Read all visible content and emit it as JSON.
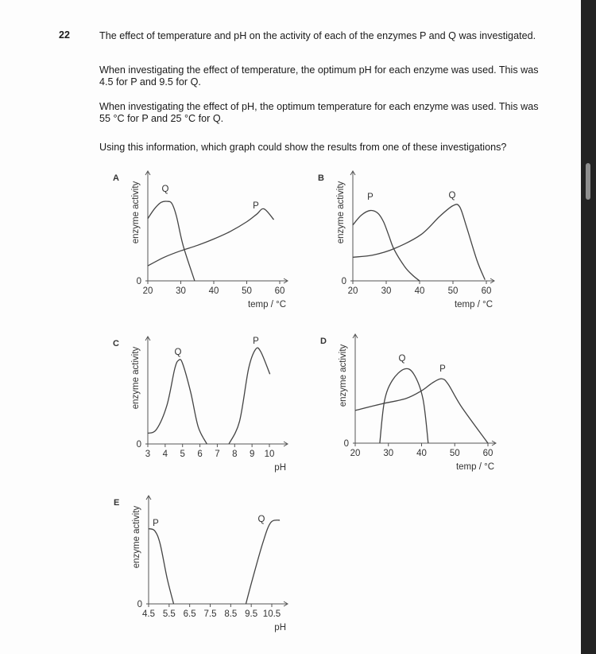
{
  "question": {
    "number": "22",
    "paragraphs": [
      "The effect of temperature and pH on the activity of each of the enzymes P and Q was investigated.",
      "When investigating the effect of temperature, the optimum pH for each enzyme was used. This was 4.5 for P and 9.5 for Q.",
      "When investigating the effect of pH, the optimum temperature for each enzyme was used. This was 55 °C for P and 25 °C for Q.",
      "Using this information, which graph could show the results from one of these investigations?"
    ]
  },
  "chart_data": [
    {
      "type": "line",
      "panel": "A",
      "ylabel": "enzyme activity",
      "xlabel": "temp / °C",
      "xticks": [
        "20",
        "30",
        "40",
        "50",
        "60"
      ],
      "yticks": [
        "0"
      ],
      "xlim": [
        20,
        60
      ],
      "ylim": [
        0,
        100
      ],
      "series": [
        {
          "name": "Q",
          "x": [
            20,
            22,
            24,
            25.9,
            27.3,
            28.7,
            30.7,
            34.2
          ],
          "y": [
            58,
            67,
            73,
            74,
            72,
            60,
            33,
            0
          ]
        },
        {
          "name": "P",
          "x": [
            20,
            25,
            30,
            35,
            40,
            45,
            50,
            53,
            55.2,
            58.2
          ],
          "y": [
            14,
            22,
            28,
            33,
            39,
            46,
            55,
            62,
            67,
            57
          ]
        }
      ]
    },
    {
      "type": "line",
      "panel": "B",
      "ylabel": "enzyme activity",
      "xlabel": "temp / °C",
      "xticks": [
        "20",
        "30",
        "40",
        "50",
        "60"
      ],
      "yticks": [
        "0"
      ],
      "xlim": [
        20,
        60
      ],
      "ylim": [
        0,
        100
      ],
      "series": [
        {
          "name": "P",
          "x": [
            20,
            22.5,
            25.2,
            27.5,
            29.2,
            30.8,
            32.4,
            35.6,
            38,
            40
          ],
          "y": [
            52,
            61,
            65.5,
            63,
            55,
            42,
            29,
            13,
            5,
            0
          ]
        },
        {
          "name": "Q",
          "x": [
            20,
            26,
            32.4,
            40.4,
            46,
            50,
            52,
            54,
            57.2,
            59.6
          ],
          "y": [
            22,
            24,
            30,
            43,
            60,
            70,
            69,
            51,
            19,
            1
          ]
        }
      ]
    },
    {
      "type": "line",
      "panel": "C",
      "ylabel": "enzyme activity",
      "xlabel": "pH",
      "xticks": [
        "3",
        "4",
        "5",
        "6",
        "7",
        "8",
        "9",
        "10"
      ],
      "yticks": [
        "0"
      ],
      "xlim": [
        3,
        10
      ],
      "ylim": [
        0,
        100
      ],
      "series": [
        {
          "name": "Q",
          "x": [
            3,
            3.5,
            4.1,
            4.55,
            4.78,
            5,
            5.47,
            5.9,
            6.4
          ],
          "y": [
            10,
            13.6,
            36,
            70,
            78,
            75,
            48,
            16,
            0
          ]
        },
        {
          "name": "P",
          "x": [
            7.67,
            8.28,
            8.8,
            9.2,
            9.5,
            10.03
          ],
          "y": [
            0,
            21,
            70,
            88,
            86,
            65
          ]
        }
      ]
    },
    {
      "type": "line",
      "panel": "D",
      "ylabel": "enzyme activity",
      "xlabel": "temp / °C",
      "xticks": [
        "20",
        "30",
        "40",
        "50",
        "60"
      ],
      "yticks": [
        "0"
      ],
      "xlim": [
        20,
        60
      ],
      "ylim": [
        0,
        100
      ],
      "series": [
        {
          "name": "Q",
          "x": [
            27.4,
            28.8,
            31.2,
            34.8,
            37.6,
            40.4,
            42
          ],
          "y": [
            0,
            39,
            58.5,
            69,
            64.6,
            41.5,
            0
          ]
        },
        {
          "name": "P",
          "x": [
            20,
            28,
            35.2,
            40,
            43.2,
            46,
            48,
            52,
            60
          ],
          "y": [
            30.5,
            36.6,
            41.5,
            48.8,
            56,
            60,
            55,
            34,
            0
          ]
        }
      ]
    },
    {
      "type": "line",
      "panel": "E",
      "ylabel": "enzyme activity",
      "xlabel": "pH",
      "xticks": [
        "4.5",
        "5.5",
        "6.5",
        "7.5",
        "8.5",
        "9.5",
        "10.5"
      ],
      "yticks": [
        "0"
      ],
      "xlim": [
        4.5,
        10.5
      ],
      "ylim": [
        0,
        100
      ],
      "series": [
        {
          "name": "P",
          "x": [
            4.5,
            4.8,
            5.06,
            5.4,
            5.72
          ],
          "y": [
            70,
            68,
            56,
            24,
            0
          ]
        },
        {
          "name": "Q",
          "x": [
            9.24,
            9.54,
            10.05,
            10.44,
            10.89
          ],
          "y": [
            0,
            21.6,
            56,
            75.5,
            78
          ]
        }
      ]
    }
  ]
}
